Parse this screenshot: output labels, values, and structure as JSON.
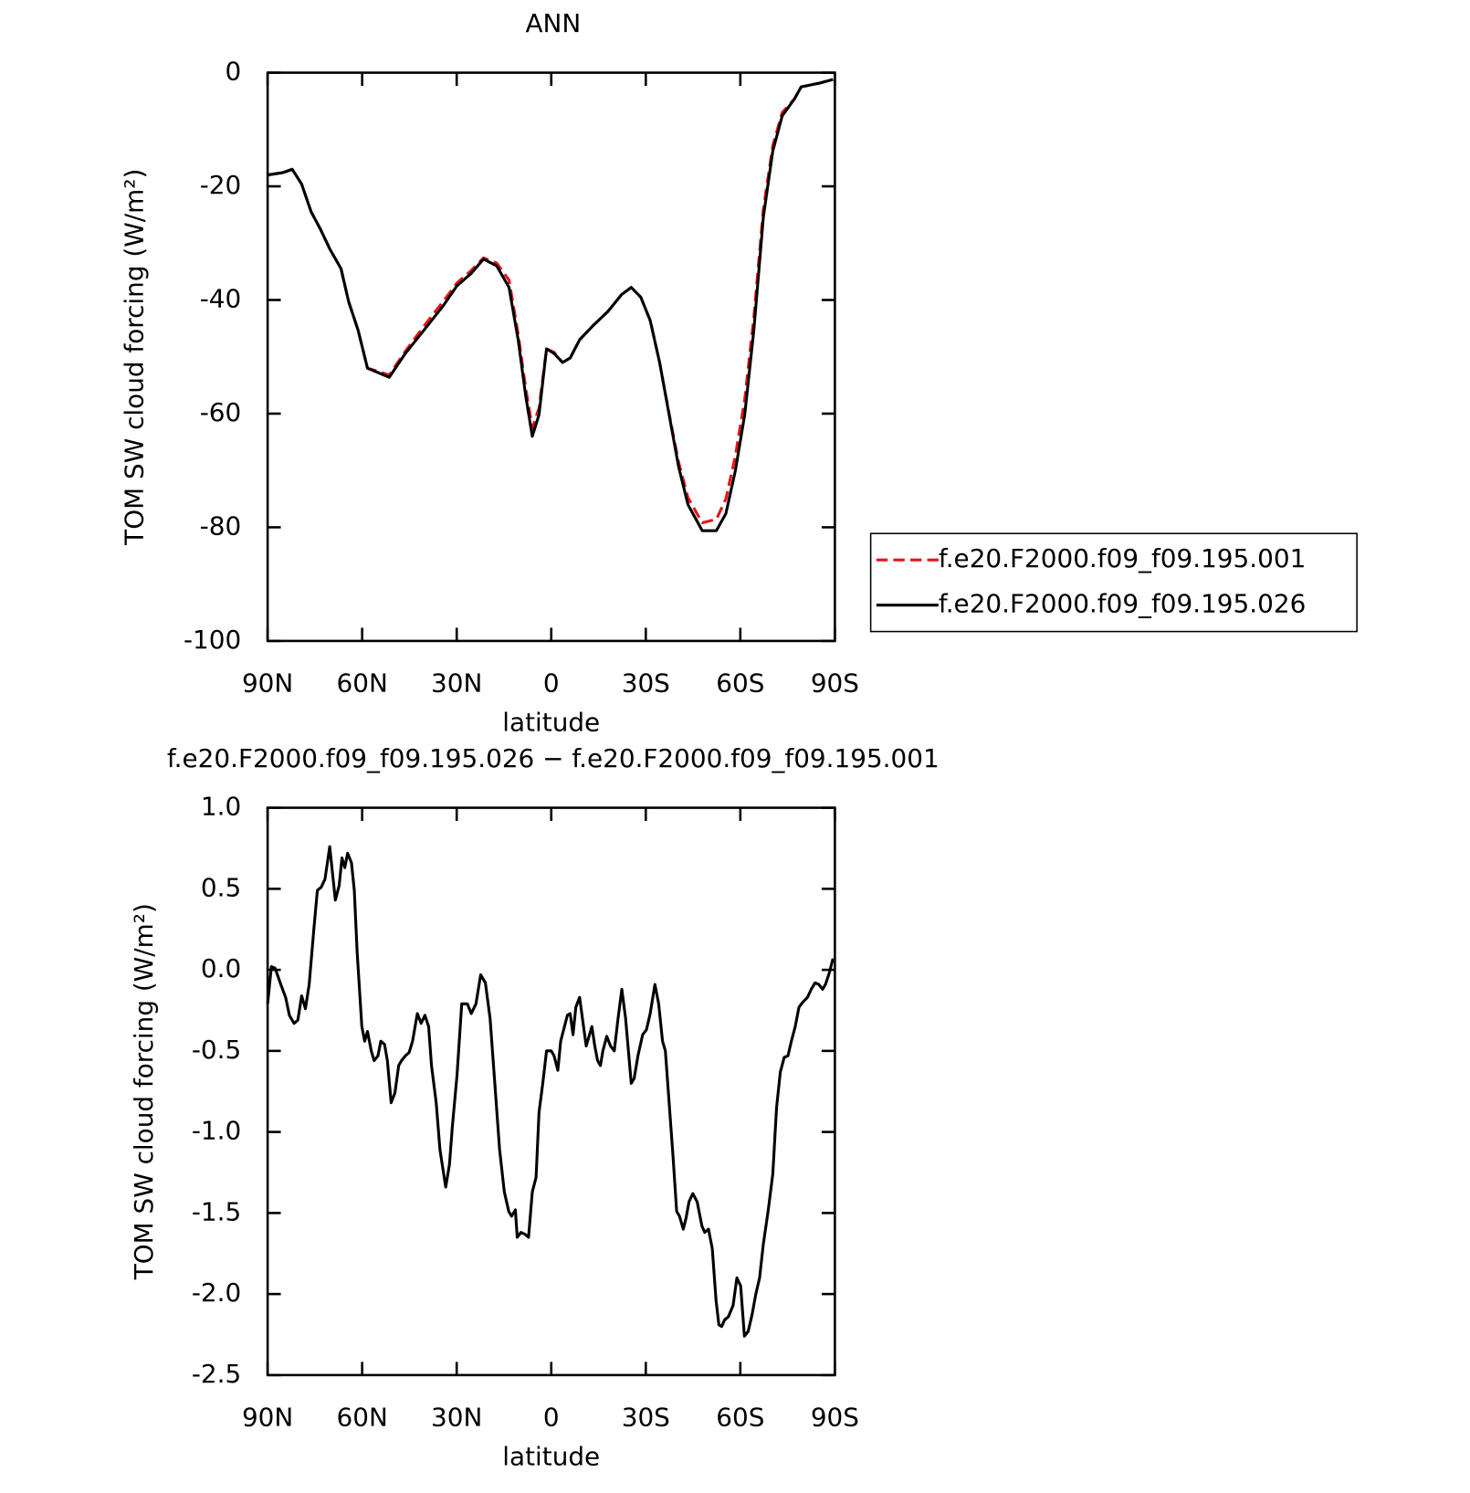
{
  "chart_data": [
    {
      "type": "line",
      "title": "ANN",
      "xlabel": "latitude",
      "ylabel": "TOM SW cloud forcing (W/m²)",
      "xlim": [
        90,
        -90
      ],
      "ylim": [
        -100,
        0
      ],
      "xticks": [
        {
          "value": 90,
          "label": "90N"
        },
        {
          "value": 60,
          "label": "60N"
        },
        {
          "value": 30,
          "label": "30N"
        },
        0,
        {
          "value": -30,
          "label": "30S"
        },
        {
          "value": -60,
          "label": "60S"
        },
        {
          "value": -90,
          "label": "90S"
        }
      ],
      "yticks": [
        0,
        -20,
        -40,
        -60,
        -80,
        -100
      ],
      "legend": "right",
      "x": [
        90,
        85.2,
        82.2,
        79.2,
        76.2,
        73.3,
        70.3,
        66.7,
        64.3,
        61.3,
        58.3,
        55.3,
        51.4,
        46.3,
        40.4,
        34.4,
        29.9,
        25.4,
        21.5,
        17.3,
        13.4,
        10.5,
        8.1,
        6,
        3.9,
        1.5,
        -0.9,
        -3.6,
        -6,
        -9,
        -13.5,
        -18,
        -22.4,
        -25.4,
        -28.4,
        -31.4,
        -34.4,
        -37.4,
        -40.4,
        -43.4,
        -47.9,
        -52.4,
        -55.4,
        -58.4,
        -61.4,
        -64.3,
        -67.3,
        -70.3,
        -73.3,
        -77.2,
        -79.3,
        -85.3,
        -89.4
      ],
      "series": [
        {
          "name": "f.e20.F2000.f09_f09.195.001",
          "color": "#e8141c",
          "linestyle": "dashed",
          "values": [
            -18,
            -17.6,
            -17,
            -19.6,
            -24.5,
            -27.5,
            -31,
            -34.5,
            -40.3,
            -45.3,
            -52,
            -52.5,
            -53.2,
            -49,
            -44.6,
            -40.3,
            -37,
            -34.8,
            -32.6,
            -33.5,
            -36.5,
            -46,
            -55.5,
            -62.5,
            -59,
            -48.6,
            -49.2,
            -51,
            -50.2,
            -47,
            -44.4,
            -42,
            -39,
            -37.8,
            -39.5,
            -43.6,
            -51,
            -60,
            -68.5,
            -74.8,
            -79.2,
            -78.6,
            -75,
            -67.5,
            -57.5,
            -43,
            -24,
            -12.8,
            -7,
            -4.6,
            -2.5,
            -1.8,
            -1.2
          ]
        },
        {
          "name": "f.e20.F2000.f09_f09.195.026",
          "color": "#000000",
          "linestyle": "solid",
          "values": [
            -18,
            -17.6,
            -17,
            -19.6,
            -24.5,
            -27.5,
            -31,
            -34.5,
            -40.3,
            -45.3,
            -52,
            -52.7,
            -53.6,
            -49.4,
            -45.3,
            -41.1,
            -37.5,
            -35.3,
            -32.8,
            -34,
            -37.8,
            -47,
            -56.9,
            -64,
            -60.2,
            -48.6,
            -49.4,
            -51,
            -50.2,
            -47,
            -44.4,
            -42,
            -39,
            -37.8,
            -39.5,
            -43.6,
            -51,
            -60.2,
            -69.3,
            -76,
            -80.6,
            -80.6,
            -77.6,
            -70.1,
            -60.2,
            -45.3,
            -25.4,
            -13.8,
            -7.6,
            -4.6,
            -2.5,
            -1.8,
            -1.2
          ]
        }
      ]
    },
    {
      "type": "line",
      "title": "f.e20.F2000.f09_f09.195.026 − f.e20.F2000.f09_f09.195.001",
      "xlabel": "latitude",
      "ylabel": "TOM SW cloud forcing (W/m²)",
      "xlim": [
        90,
        -90
      ],
      "ylim": [
        -2.5,
        1
      ],
      "xticks": [
        {
          "value": 90,
          "label": "90N"
        },
        {
          "value": 60,
          "label": "60N"
        },
        {
          "value": 30,
          "label": "30N"
        },
        0,
        {
          "value": -30,
          "label": "30S"
        },
        {
          "value": -60,
          "label": "60S"
        },
        {
          "value": -90,
          "label": "90S"
        }
      ],
      "yticks": [
        {
          "value": 1,
          "label": "1.0"
        },
        0.5,
        {
          "value": 0,
          "label": "0.0"
        },
        -0.5,
        {
          "value": -1,
          "label": "-1.0"
        },
        -1.5,
        {
          "value": -2,
          "label": "-2.0"
        },
        -2.5
      ],
      "color": "#000000",
      "x": [
        90,
        88.8,
        87.6,
        85.8,
        84.3,
        83.1,
        81.6,
        80.4,
        79.2,
        78.0,
        76.8,
        75.3,
        74.2,
        73.0,
        71.8,
        70.3,
        68.5,
        67.3,
        66.4,
        65.5,
        64.6,
        63.4,
        62.5,
        61.6,
        60.1,
        59.2,
        58.3,
        57.1,
        56.2,
        55.0,
        54.1,
        52.9,
        52.0,
        50.8,
        49.6,
        48.4,
        47.5,
        46.3,
        45.1,
        44.0,
        42.5,
        41.3,
        40.1,
        38.9,
        38.0,
        36.5,
        35.3,
        33.5,
        32.3,
        31.4,
        29.9,
        28.4,
        26.6,
        25.4,
        23.9,
        22.4,
        20.9,
        19.4,
        17.9,
        16.4,
        14.9,
        13.5,
        12.6,
        11.4,
        10.8,
        9.6,
        8.4,
        7.2,
        6.0,
        4.8,
        3.9,
        2.7,
        1.5,
        0,
        -0.9,
        -2.1,
        -3.0,
        -4.2,
        -5.1,
        -6.0,
        -6.9,
        -7.8,
        -9.0,
        -9.9,
        -11.1,
        -12.9,
        -13.8,
        -14.7,
        -15.6,
        -16.4,
        -17.6,
        -18.8,
        -20.0,
        -21.2,
        -22.4,
        -23.6,
        -25.4,
        -26.3,
        -27.5,
        -29.0,
        -30.2,
        -31.4,
        -32.9,
        -34.1,
        -35.3,
        -36.2,
        -37.4,
        -38.6,
        -39.8,
        -40.7,
        -41.9,
        -42.8,
        -43.7,
        -44.9,
        -46.3,
        -47.8,
        -48.7,
        -49.9,
        -51.1,
        -52.3,
        -53.2,
        -54.1,
        -55.0,
        -56.2,
        -57.7,
        -58.9,
        -60.1,
        -61.3,
        -62.5,
        -63.7,
        -64.9,
        -66.1,
        -67.3,
        -68.8,
        -70.3,
        -71.5,
        -72.7,
        -73.9,
        -75.1,
        -76.2,
        -77.4,
        -78.6,
        -79.8,
        -81.3,
        -82.5,
        -83.7,
        -84.9,
        -86.1,
        -87.0,
        -88.2,
        -89.4
      ],
      "values": [
        -0.21,
        0.02,
        0.01,
        -0.09,
        -0.17,
        -0.28,
        -0.33,
        -0.31,
        -0.16,
        -0.24,
        -0.09,
        0.26,
        0.49,
        0.51,
        0.56,
        0.76,
        0.43,
        0.52,
        0.69,
        0.63,
        0.72,
        0.66,
        0.49,
        0.11,
        -0.35,
        -0.44,
        -0.38,
        -0.5,
        -0.56,
        -0.53,
        -0.44,
        -0.46,
        -0.56,
        -0.82,
        -0.76,
        -0.59,
        -0.56,
        -0.53,
        -0.51,
        -0.44,
        -0.27,
        -0.33,
        -0.28,
        -0.35,
        -0.59,
        -0.82,
        -1.11,
        -1.34,
        -1.2,
        -0.97,
        -0.65,
        -0.21,
        -0.21,
        -0.27,
        -0.21,
        -0.03,
        -0.08,
        -0.3,
        -0.7,
        -1.11,
        -1.37,
        -1.49,
        -1.52,
        -1.48,
        -1.65,
        -1.62,
        -1.63,
        -1.65,
        -1.37,
        -1.28,
        -0.88,
        -0.7,
        -0.5,
        -0.5,
        -0.53,
        -0.62,
        -0.44,
        -0.35,
        -0.28,
        -0.27,
        -0.4,
        -0.23,
        -0.17,
        -0.3,
        -0.47,
        -0.35,
        -0.47,
        -0.56,
        -0.59,
        -0.5,
        -0.41,
        -0.47,
        -0.5,
        -0.3,
        -0.12,
        -0.3,
        -0.7,
        -0.67,
        -0.53,
        -0.4,
        -0.37,
        -0.27,
        -0.09,
        -0.21,
        -0.44,
        -0.5,
        -0.82,
        -1.14,
        -1.49,
        -1.52,
        -1.6,
        -1.53,
        -1.43,
        -1.38,
        -1.43,
        -1.58,
        -1.62,
        -1.6,
        -1.72,
        -2.04,
        -2.19,
        -2.2,
        -2.16,
        -2.14,
        -2.07,
        -1.9,
        -1.95,
        -2.26,
        -2.23,
        -2.13,
        -2,
        -1.9,
        -1.69,
        -1.49,
        -1.26,
        -0.85,
        -0.63,
        -0.54,
        -0.53,
        -0.44,
        -0.35,
        -0.23,
        -0.2,
        -0.17,
        -0.12,
        -0.08,
        -0.09,
        -0.12,
        -0.09,
        -0.02,
        0.07
      ]
    }
  ]
}
